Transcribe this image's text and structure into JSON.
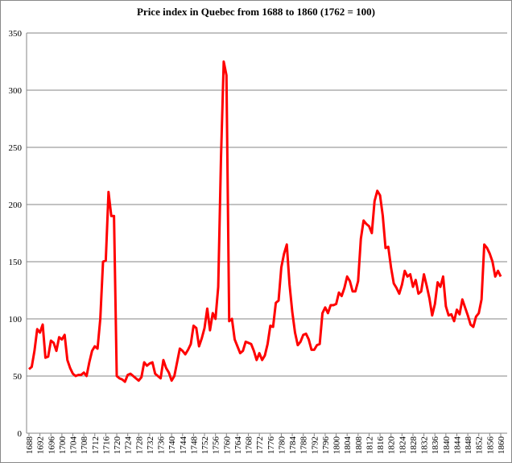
{
  "chart_data": {
    "type": "line",
    "title": "Price index  in Quebec from  1688 to 1860 (1762 = 100)",
    "x": [
      1688,
      1689,
      1690,
      1691,
      1692,
      1693,
      1694,
      1695,
      1696,
      1697,
      1698,
      1699,
      1700,
      1701,
      1702,
      1703,
      1704,
      1705,
      1706,
      1707,
      1708,
      1709,
      1710,
      1711,
      1712,
      1713,
      1714,
      1715,
      1716,
      1717,
      1718,
      1719,
      1720,
      1721,
      1722,
      1723,
      1724,
      1725,
      1726,
      1727,
      1728,
      1729,
      1730,
      1731,
      1732,
      1733,
      1734,
      1735,
      1736,
      1737,
      1738,
      1739,
      1740,
      1741,
      1742,
      1743,
      1744,
      1745,
      1746,
      1747,
      1748,
      1749,
      1750,
      1751,
      1752,
      1753,
      1754,
      1755,
      1756,
      1757,
      1758,
      1759,
      1760,
      1761,
      1762,
      1763,
      1764,
      1765,
      1766,
      1767,
      1768,
      1769,
      1770,
      1771,
      1772,
      1773,
      1774,
      1775,
      1776,
      1777,
      1778,
      1779,
      1780,
      1781,
      1782,
      1783,
      1784,
      1785,
      1786,
      1787,
      1788,
      1789,
      1790,
      1791,
      1792,
      1793,
      1794,
      1795,
      1796,
      1797,
      1798,
      1799,
      1800,
      1801,
      1802,
      1803,
      1804,
      1805,
      1806,
      1807,
      1808,
      1809,
      1810,
      1811,
      1812,
      1813,
      1814,
      1815,
      1816,
      1817,
      1818,
      1819,
      1820,
      1821,
      1822,
      1823,
      1824,
      1825,
      1826,
      1827,
      1828,
      1829,
      1830,
      1831,
      1832,
      1833,
      1834,
      1835,
      1836,
      1837,
      1838,
      1839,
      1840,
      1841,
      1842,
      1843,
      1844,
      1845,
      1846,
      1847,
      1848,
      1849,
      1850,
      1851,
      1852,
      1853,
      1854,
      1855,
      1856,
      1857,
      1858,
      1859,
      1860
    ],
    "series": [
      {
        "name": "Price index",
        "color": "#ff0000",
        "values": [
          56,
          58,
          72,
          91,
          88,
          95,
          66,
          67,
          81,
          79,
          72,
          84,
          82,
          86,
          64,
          57,
          52,
          50,
          51,
          51,
          53,
          50,
          62,
          72,
          76,
          74,
          100,
          150,
          151,
          211,
          190,
          190,
          50,
          48,
          47,
          45,
          51,
          52,
          50,
          48,
          46,
          49,
          62,
          59,
          61,
          62,
          52,
          50,
          48,
          64,
          57,
          53,
          46,
          50,
          62,
          74,
          72,
          69,
          73,
          78,
          94,
          92,
          76,
          83,
          92,
          109,
          90,
          105,
          100,
          128,
          240,
          325,
          313,
          98,
          100,
          82,
          76,
          70,
          72,
          80,
          79,
          78,
          72,
          64,
          70,
          64,
          68,
          78,
          94,
          93,
          114,
          116,
          145,
          157,
          165,
          130,
          106,
          88,
          77,
          80,
          86,
          87,
          82,
          73,
          73,
          77,
          78,
          105,
          110,
          105,
          112,
          112,
          113,
          123,
          120,
          127,
          137,
          133,
          124,
          124,
          133,
          170,
          186,
          183,
          181,
          175,
          203,
          212,
          208,
          190,
          162,
          163,
          145,
          131,
          127,
          122,
          130,
          142,
          137,
          139,
          128,
          134,
          122,
          124,
          139,
          129,
          118,
          103,
          113,
          132,
          128,
          137,
          111,
          103,
          104,
          98,
          108,
          104,
          117,
          110,
          103,
          95,
          93,
          102,
          105,
          117,
          165,
          162,
          157,
          150,
          137,
          142,
          137
        ]
      }
    ],
    "xlim": [
      1688,
      1860
    ],
    "xticks": [
      1688,
      1692,
      1696,
      1700,
      1704,
      1708,
      1712,
      1716,
      1720,
      1724,
      1728,
      1732,
      1736,
      1740,
      1744,
      1748,
      1752,
      1756,
      1760,
      1764,
      1768,
      1772,
      1776,
      1780,
      1784,
      1788,
      1792,
      1796,
      1800,
      1804,
      1808,
      1812,
      1816,
      1820,
      1824,
      1828,
      1832,
      1836,
      1840,
      1844,
      1848,
      1852,
      1856,
      1860
    ],
    "ylim": [
      0,
      350
    ],
    "yticks": [
      0,
      50,
      100,
      150,
      200,
      250,
      300,
      350
    ],
    "grid": true
  }
}
